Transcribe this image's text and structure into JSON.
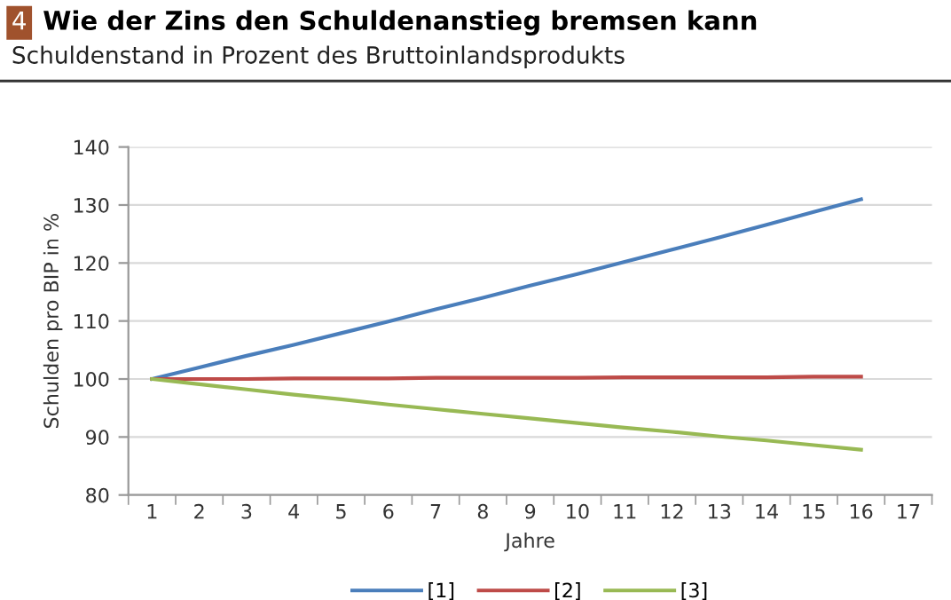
{
  "chart_data": {
    "type": "line",
    "title": "Wie der Zins den Schuldenanstieg bremsen kann",
    "subtitle": "Schuldenstand in Prozent des Bruttoinlandsprodukts",
    "annotations": [
      "4"
    ],
    "xlabel": "Jahre",
    "ylabel": "Schulden pro BIP in %",
    "categories": [
      "1",
      "2",
      "3",
      "4",
      "5",
      "6",
      "7",
      "8",
      "9",
      "10",
      "11",
      "12",
      "13",
      "14",
      "15",
      "16",
      "17"
    ],
    "series": [
      {
        "name": "[1]",
        "color": "#4a7ebb",
        "values": [
          100,
          102,
          104,
          105.9,
          107.9,
          109.9,
          112,
          114,
          116.1,
          118.1,
          120.2,
          122.3,
          124.4,
          126.6,
          128.8,
          131,
          null
        ]
      },
      {
        "name": "[2]",
        "color": "#be4b48",
        "values": [
          100,
          100,
          100,
          100.1,
          100.1,
          100.1,
          100.2,
          100.2,
          100.2,
          100.2,
          100.3,
          100.3,
          100.3,
          100.3,
          100.4,
          100.4,
          null
        ]
      },
      {
        "name": "[3]",
        "color": "#98b954",
        "values": [
          100,
          99.1,
          98.2,
          97.3,
          96.5,
          95.6,
          94.8,
          94,
          93.2,
          92.4,
          91.6,
          90.9,
          90.1,
          89.4,
          88.6,
          87.8,
          null
        ]
      }
    ],
    "ylim": [
      80,
      140
    ],
    "yticks": [
      80,
      90,
      100,
      110,
      120,
      130,
      140
    ],
    "grid": "y",
    "legend": "bottom",
    "marker": "none",
    "line_style": "solid"
  }
}
